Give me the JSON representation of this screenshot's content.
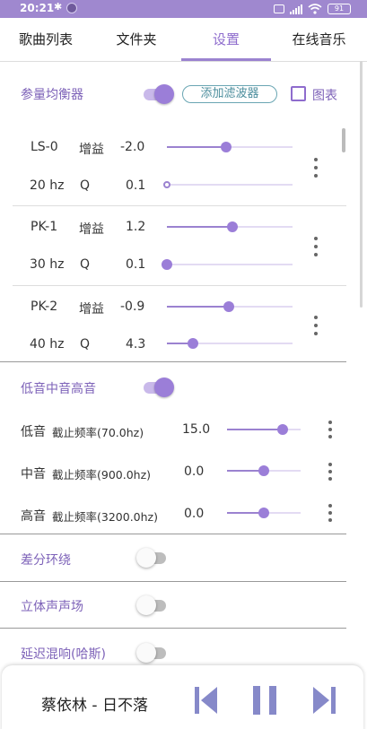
{
  "status_bar": {
    "time": "20:21",
    "battery": "91"
  },
  "tabs": [
    {
      "label": "歌曲列表",
      "active": false
    },
    {
      "label": "文件夹",
      "active": false
    },
    {
      "label": "设置",
      "active": true
    },
    {
      "label": "在线音乐",
      "active": false
    }
  ],
  "param_eq": {
    "title": "参量均衡器",
    "enabled": true,
    "add_filter_label": "添加滤波器",
    "chart_label": "图表",
    "chart_checked": false,
    "filters": [
      {
        "name": "LS-0",
        "freq": "20 hz",
        "gain_label": "增益",
        "gain": "-2.0",
        "gain_pos": 0.47,
        "q_label": "Q",
        "q": "0.1",
        "q_pos": 0.0
      },
      {
        "name": "PK-1",
        "freq": "30 hz",
        "gain_label": "增益",
        "gain": "1.2",
        "gain_pos": 0.52,
        "q_label": "Q",
        "q": "0.1",
        "q_pos": 0.0
      },
      {
        "name": "PK-2",
        "freq": "40 hz",
        "gain_label": "增益",
        "gain": "-0.9",
        "gain_pos": 0.49,
        "q_label": "Q",
        "q": "4.3",
        "q_pos": 0.21
      }
    ]
  },
  "bass_mid_treble": {
    "title": "低音中音高音",
    "enabled": true,
    "bands": [
      {
        "name": "低音",
        "cutoff": "截止频率(70.0hz)",
        "value": "15.0",
        "pos": 0.75
      },
      {
        "name": "中音",
        "cutoff": "截止频率(900.0hz)",
        "value": "0.0",
        "pos": 0.5
      },
      {
        "name": "高音",
        "cutoff": "截止频率(3200.0hz)",
        "value": "0.0",
        "pos": 0.5
      }
    ]
  },
  "toggles": [
    {
      "label": "差分环绕",
      "enabled": false
    },
    {
      "label": "立体声声场",
      "enabled": false
    },
    {
      "label": "延迟混响(哈斯)",
      "enabled": false
    }
  ],
  "player": {
    "song": "蔡依林 - 日不落"
  },
  "colors": {
    "accent": "#9b7ed8",
    "status_bar": "#9f88cf",
    "player_buttons": "#8689c9"
  }
}
